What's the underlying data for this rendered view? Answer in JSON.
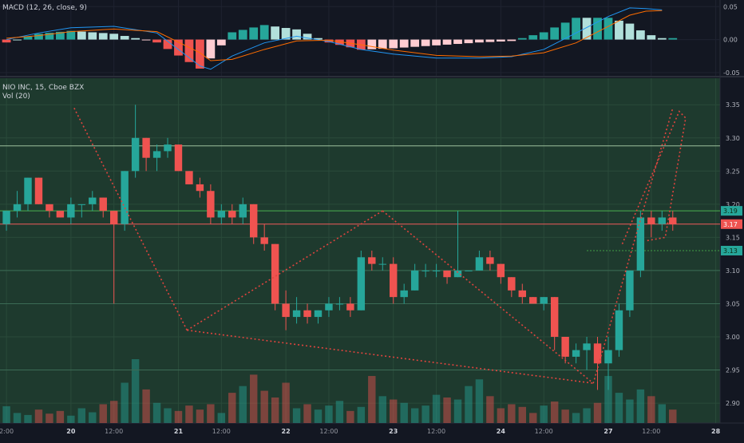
{
  "indicators": {
    "macd_label": "MACD (12, 26, close, 9)",
    "symbol_label": "NIO INC, 15, Cboe BZX",
    "volume_label": "Vol (20)"
  },
  "colors": {
    "background": "#131722",
    "up": "#26a69a",
    "down": "#ef5350",
    "macd_line": "#2196f3",
    "signal_line": "#ff6d00",
    "price_line": "#f05a5a"
  },
  "chart_data": [
    {
      "type": "line",
      "title": "MACD (12, 26, close, 9)",
      "ylim": [
        -0.055,
        0.06
      ],
      "yticks": [
        "0.05",
        "0.00",
        "-0.05"
      ],
      "series": [
        {
          "name": "MACD",
          "x": [
            0,
            3,
            6,
            10,
            14,
            18,
            19,
            21,
            24,
            27,
            30,
            33,
            36,
            40,
            44,
            47,
            50,
            53,
            56,
            58,
            59.5,
            61
          ],
          "values": [
            0.0,
            0.01,
            0.018,
            0.02,
            0.01,
            -0.04,
            -0.045,
            -0.025,
            -0.005,
            0.005,
            -0.003,
            -0.015,
            -0.022,
            -0.028,
            -0.028,
            -0.026,
            -0.015,
            0.01,
            0.035,
            0.048,
            0.047,
            0.045
          ]
        },
        {
          "name": "Signal",
          "x": [
            0,
            3,
            6,
            10,
            14,
            18,
            19,
            21,
            24,
            27,
            30,
            33,
            36,
            40,
            44,
            47,
            50,
            53,
            56,
            58,
            59.5,
            61
          ],
          "values": [
            0.002,
            0.006,
            0.012,
            0.016,
            0.012,
            -0.02,
            -0.032,
            -0.03,
            -0.015,
            -0.002,
            -0.001,
            -0.008,
            -0.016,
            -0.024,
            -0.026,
            -0.025,
            -0.02,
            -0.005,
            0.02,
            0.037,
            0.043,
            0.044
          ]
        }
      ]
    },
    {
      "type": "candlestick",
      "title": "NIO INC, 15, Cboe BZX",
      "ylim": [
        2.87,
        3.39
      ],
      "yticks": [
        "3.35",
        "3.30",
        "3.25",
        "3.20",
        "3.15",
        "3.10",
        "3.05",
        "3.00",
        "2.95",
        "2.90"
      ],
      "price_labels": [
        {
          "value": 3.19,
          "text": "3.19",
          "color": "#26a69a"
        },
        {
          "value": 3.17,
          "text": "3.17",
          "color": "#ef5350"
        },
        {
          "value": 3.13,
          "text": "3.13",
          "color": "#26a69a"
        }
      ],
      "horizontal_levels": [
        3.288,
        3.19,
        3.17,
        3.13,
        3.1,
        3.05,
        2.95
      ],
      "xticks": [
        "2:00",
        "20",
        "12:00",
        "21",
        "12:00",
        "22",
        "12:00",
        "23",
        "12:00",
        "24",
        "12:00",
        "27",
        "12:00",
        "28"
      ],
      "xtick_pos": [
        0,
        6,
        10,
        16,
        20,
        26,
        30,
        36,
        40,
        46,
        50,
        56,
        60,
        66
      ],
      "xtick_bold": [
        false,
        true,
        false,
        true,
        false,
        true,
        false,
        true,
        false,
        true,
        false,
        true,
        false,
        true
      ],
      "x_window": [
        -0.6,
        66.4
      ],
      "candles": [
        [
          3.17,
          3.19,
          3.16,
          3.19
        ],
        [
          3.19,
          3.22,
          3.18,
          3.2
        ],
        [
          3.2,
          3.24,
          3.19,
          3.24
        ],
        [
          3.24,
          3.24,
          3.2,
          3.2
        ],
        [
          3.2,
          3.2,
          3.18,
          3.19
        ],
        [
          3.19,
          3.19,
          3.18,
          3.18
        ],
        [
          3.18,
          3.21,
          3.17,
          3.2
        ],
        [
          3.2,
          3.2,
          3.18,
          3.2
        ],
        [
          3.2,
          3.22,
          3.19,
          3.21
        ],
        [
          3.21,
          3.21,
          3.18,
          3.19
        ],
        [
          3.19,
          3.19,
          3.05,
          3.17
        ],
        [
          3.17,
          3.25,
          3.16,
          3.25
        ],
        [
          3.25,
          3.35,
          3.24,
          3.3
        ],
        [
          3.3,
          3.3,
          3.25,
          3.27
        ],
        [
          3.27,
          3.29,
          3.25,
          3.28
        ],
        [
          3.28,
          3.3,
          3.27,
          3.29
        ],
        [
          3.29,
          3.29,
          3.25,
          3.25
        ],
        [
          3.25,
          3.25,
          3.23,
          3.23
        ],
        [
          3.23,
          3.24,
          3.21,
          3.22
        ],
        [
          3.22,
          3.23,
          3.17,
          3.18
        ],
        [
          3.18,
          3.2,
          3.17,
          3.19
        ],
        [
          3.19,
          3.2,
          3.17,
          3.18
        ],
        [
          3.18,
          3.21,
          3.17,
          3.2
        ],
        [
          3.2,
          3.2,
          3.14,
          3.15
        ],
        [
          3.15,
          3.17,
          3.13,
          3.14
        ],
        [
          3.14,
          3.14,
          3.04,
          3.05
        ],
        [
          3.05,
          3.07,
          3.01,
          3.03
        ],
        [
          3.03,
          3.06,
          3.02,
          3.04
        ],
        [
          3.04,
          3.05,
          3.02,
          3.03
        ],
        [
          3.03,
          3.04,
          3.02,
          3.04
        ],
        [
          3.04,
          3.06,
          3.03,
          3.05
        ],
        [
          3.05,
          3.06,
          3.04,
          3.05
        ],
        [
          3.05,
          3.06,
          3.03,
          3.04
        ],
        [
          3.04,
          3.13,
          3.04,
          3.12
        ],
        [
          3.12,
          3.13,
          3.1,
          3.11
        ],
        [
          3.11,
          3.12,
          3.1,
          3.11
        ],
        [
          3.11,
          3.12,
          3.05,
          3.06
        ],
        [
          3.06,
          3.08,
          3.05,
          3.07
        ],
        [
          3.07,
          3.11,
          3.07,
          3.1
        ],
        [
          3.1,
          3.11,
          3.09,
          3.1
        ],
        [
          3.1,
          3.11,
          3.09,
          3.1
        ],
        [
          3.1,
          3.1,
          3.08,
          3.09
        ],
        [
          3.09,
          3.19,
          3.09,
          3.1
        ],
        [
          3.1,
          3.1,
          3.1,
          3.1
        ],
        [
          3.1,
          3.13,
          3.1,
          3.12
        ],
        [
          3.12,
          3.13,
          3.1,
          3.11
        ],
        [
          3.11,
          3.11,
          3.08,
          3.09
        ],
        [
          3.09,
          3.09,
          3.06,
          3.07
        ],
        [
          3.07,
          3.08,
          3.05,
          3.06
        ],
        [
          3.06,
          3.06,
          3.05,
          3.05
        ],
        [
          3.05,
          3.06,
          3.04,
          3.06
        ],
        [
          3.06,
          3.06,
          2.98,
          3.0
        ],
        [
          3.0,
          3.0,
          2.96,
          2.97
        ],
        [
          2.97,
          2.99,
          2.96,
          2.98
        ],
        [
          2.98,
          3.0,
          2.95,
          2.99
        ],
        [
          2.99,
          3.0,
          2.92,
          2.96
        ],
        [
          2.96,
          3.0,
          2.92,
          2.98
        ],
        [
          2.98,
          3.05,
          2.97,
          3.04
        ],
        [
          3.04,
          3.1,
          3.03,
          3.1
        ],
        [
          3.1,
          3.19,
          3.09,
          3.18
        ],
        [
          3.18,
          3.19,
          3.15,
          3.17
        ],
        [
          3.17,
          3.19,
          3.16,
          3.18
        ],
        [
          3.18,
          3.19,
          3.16,
          3.17
        ]
      ],
      "pattern_lines": [
        {
          "x": [
            6.3,
            16.8
          ],
          "values": [
            3.345,
            3.01
          ],
          "style": "dotted"
        },
        {
          "x": [
            16.8,
            35.0
          ],
          "values": [
            3.01,
            3.19
          ],
          "style": "dotted"
        },
        {
          "x": [
            35.0,
            54.6
          ],
          "values": [
            3.19,
            2.93
          ],
          "style": "dotted"
        },
        {
          "x": [
            16.8,
            54.6
          ],
          "values": [
            3.01,
            2.93
          ],
          "style": "dotted"
        },
        {
          "x": [
            54.6,
            62.0
          ],
          "values": [
            2.93,
            3.345
          ],
          "style": "dotted"
        },
        {
          "x": [
            57.3,
            62.6,
            63.2,
            61.3,
            59.6
          ],
          "values": [
            3.14,
            3.34,
            3.33,
            3.15,
            3.145
          ],
          "style": "dotted"
        }
      ]
    },
    {
      "type": "bar",
      "title": "Vol (20)",
      "values": [
        25,
        15,
        12,
        20,
        14,
        18,
        11,
        22,
        16,
        28,
        33,
        60,
        95,
        50,
        30,
        22,
        18,
        26,
        20,
        28,
        15,
        45,
        55,
        72,
        48,
        38,
        60,
        22,
        28,
        20,
        26,
        33,
        18,
        24,
        70,
        40,
        35,
        30,
        22,
        26,
        42,
        38,
        35,
        55,
        65,
        40,
        22,
        28,
        24,
        15,
        26,
        32,
        20,
        15,
        22,
        30,
        70,
        45,
        35,
        50,
        40,
        28,
        20
      ],
      "colors_per_bar": "matches candle direction"
    }
  ]
}
